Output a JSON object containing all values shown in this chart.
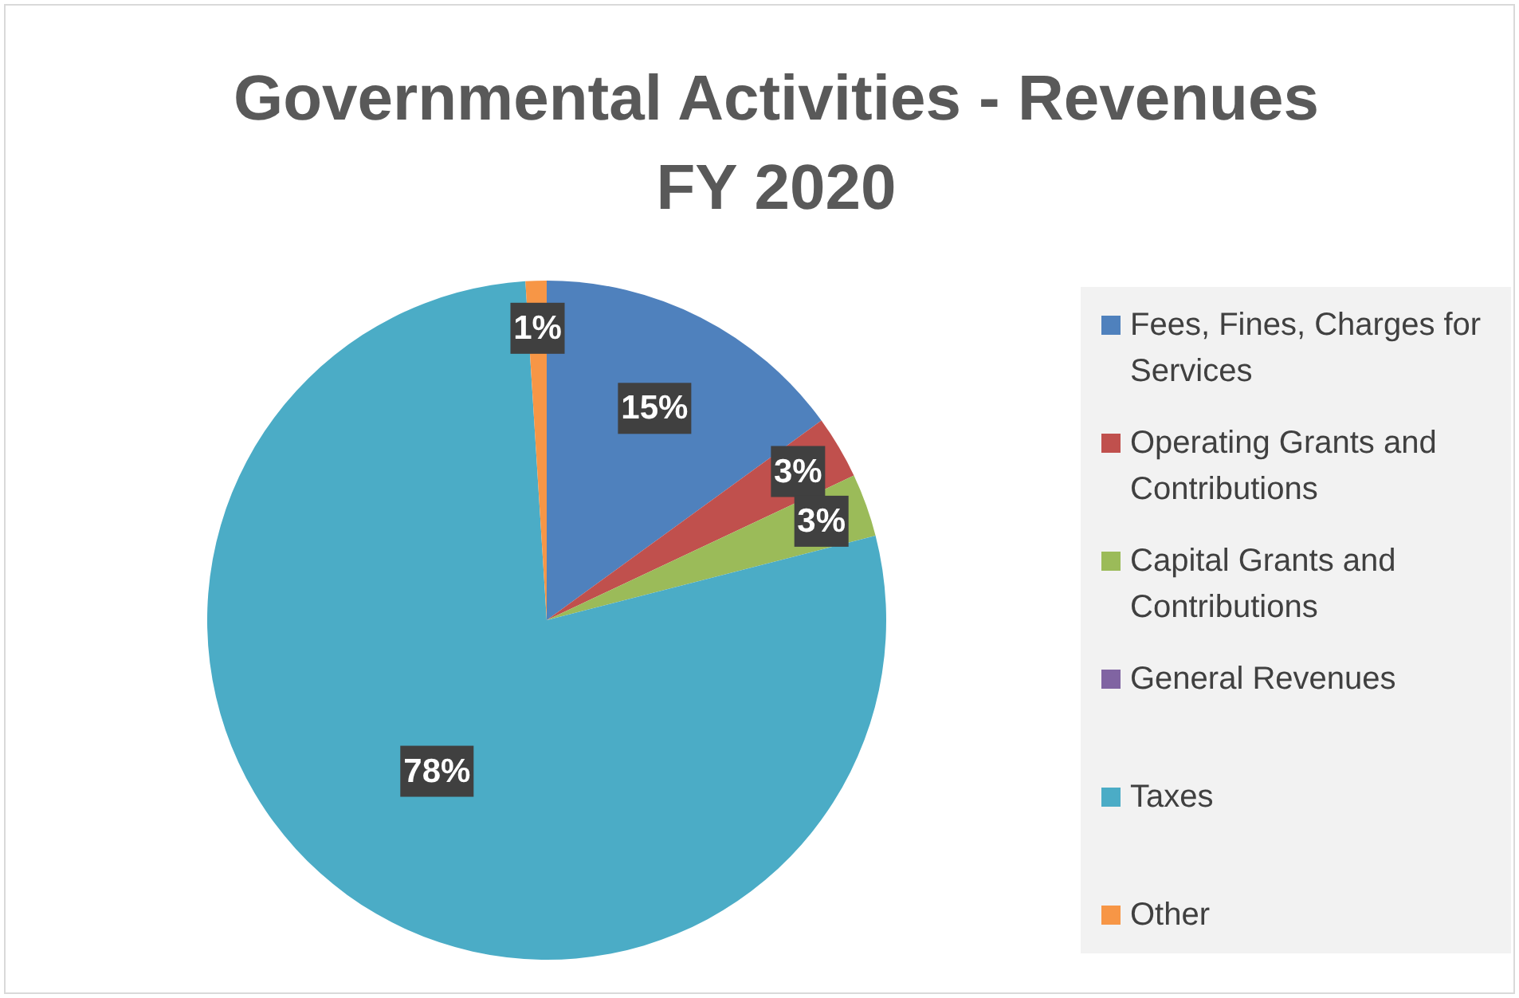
{
  "chart_data": {
    "type": "pie",
    "title": "Governmental Activities - Revenues\nFY 2020",
    "categories": [
      "Fees, Fines, Charges for Services",
      "Operating Grants and Contributions",
      "Capital Grants and Contributions",
      "General Revenues",
      "Taxes",
      "Other"
    ],
    "values": [
      15,
      3,
      3,
      0,
      78,
      1
    ],
    "value_labels": [
      "15%",
      "3%",
      "3%",
      null,
      "78%",
      "1%"
    ],
    "colors": [
      "#4f81bd",
      "#c0504d",
      "#9bbb59",
      "#8064a2",
      "#4bacc6",
      "#f79646"
    ],
    "legend": "right"
  }
}
